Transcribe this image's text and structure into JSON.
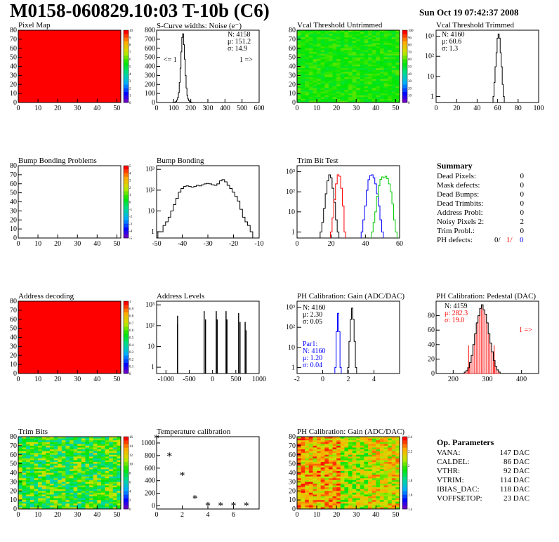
{
  "header": {
    "title": "M0158-060829.10:03 T-10b (C6)",
    "date": "Sun Oct 19 07:42:37 2008"
  },
  "colors": {
    "red": "#ff0000",
    "blue": "#0000ff",
    "green": "#00cc00",
    "black": "#000000"
  },
  "chart_data": [
    {
      "type": "heatmap",
      "title": "Pixel Map",
      "xlim": [
        0,
        52
      ],
      "ylim": [
        0,
        80
      ],
      "xticks": [
        "0",
        "10",
        "20",
        "30",
        "40",
        "50"
      ],
      "yticks": [
        "0",
        "10",
        "20",
        "30",
        "40",
        "50",
        "60",
        "70",
        "80"
      ],
      "zlim": [
        0,
        10
      ],
      "palette_ticks": [
        "0",
        "1",
        "2",
        "3",
        "4",
        "5",
        "6",
        "7",
        "8",
        "9",
        "10"
      ],
      "fill_color": "#ff0000"
    },
    {
      "type": "line",
      "title": "S-Curve widths: Noise (e⁻)",
      "xlim": [
        0,
        600
      ],
      "xticks": [
        "0",
        "100",
        "200",
        "300",
        "400",
        "500",
        "600"
      ],
      "ylim": [
        0,
        800
      ],
      "yticks": [
        "0",
        "100",
        "200",
        "300",
        "400",
        "500",
        "600",
        "700",
        "800"
      ],
      "stats": [
        "N: 4158",
        "μ: 151.2",
        "σ: 14.9"
      ],
      "annotations": [
        "<= 1",
        "1 =>"
      ],
      "x": [
        95,
        100,
        105,
        110,
        115,
        120,
        125,
        130,
        135,
        140,
        145,
        150,
        155,
        160,
        165,
        170,
        175,
        180,
        185,
        190,
        195,
        200,
        205,
        210
      ],
      "values": [
        1,
        2,
        3,
        6,
        12,
        28,
        55,
        110,
        220,
        380,
        560,
        720,
        760,
        640,
        480,
        300,
        160,
        80,
        40,
        20,
        10,
        5,
        2,
        1
      ]
    },
    {
      "type": "heatmap",
      "title": "Vcal Threshold Untrimmed",
      "xlim": [
        0,
        52
      ],
      "ylim": [
        0,
        80
      ],
      "xticks": [
        "0",
        "10",
        "20",
        "30",
        "40",
        "50"
      ],
      "yticks": [
        "0",
        "10",
        "20",
        "30",
        "40",
        "50",
        "60",
        "70",
        "80"
      ],
      "palette_ticks": [
        "0",
        "10",
        "20",
        "30",
        "40",
        "50",
        "60",
        "70",
        "80",
        "90",
        "100"
      ],
      "fill_color": "#39e639"
    },
    {
      "type": "line",
      "title": "Vcal Threshold Trimmed",
      "xlim": [
        0,
        100
      ],
      "xticks": [
        "0",
        "20",
        "40",
        "60",
        "80",
        "100"
      ],
      "yscale": "log",
      "ylim": [
        0.5,
        2000
      ],
      "yticks": [
        "1",
        "10",
        "10²",
        "10³"
      ],
      "stats": [
        "N: 4160",
        "μ: 60.6",
        "σ: 1.3"
      ],
      "x": [
        56,
        57,
        58,
        59,
        60,
        61,
        62,
        63,
        64,
        65,
        66
      ],
      "values": [
        1,
        5,
        30,
        150,
        800,
        1300,
        800,
        150,
        30,
        4,
        1
      ]
    },
    {
      "type": "heatmap",
      "title": "Bump Bonding Problems",
      "xlim": [
        0,
        52
      ],
      "ylim": [
        0,
        80
      ],
      "xticks": [
        "0",
        "10",
        "20",
        "30",
        "40",
        "50"
      ],
      "yticks": [
        "0",
        "10",
        "20",
        "30",
        "40",
        "50",
        "60",
        "70",
        "80"
      ],
      "palette_ticks": [
        "-5",
        "-4",
        "-3",
        "-2",
        "-1",
        "0",
        "1",
        "2",
        "3",
        "4",
        "5"
      ],
      "fill_color": "#ffffff"
    },
    {
      "type": "line",
      "title": "Bump Bonding",
      "xlim": [
        -50,
        -10
      ],
      "xticks": [
        "-50",
        "-40",
        "-30",
        "-20",
        "-10"
      ],
      "yscale": "log",
      "ylim": [
        0.5,
        1500
      ],
      "yticks": [
        "1",
        "10",
        "10²",
        "10³"
      ],
      "x": [
        -49,
        -48,
        -47,
        -46,
        -45,
        -44,
        -43,
        -42,
        -41,
        -40,
        -39,
        -38,
        -37,
        -36,
        -35,
        -34,
        -33,
        -32,
        -31,
        -30,
        -29,
        -28,
        -27,
        -26,
        -25,
        -24,
        -23,
        -22,
        -21,
        -20,
        -19,
        -18,
        -17,
        -16,
        -15,
        -14,
        -13
      ],
      "values": [
        1,
        1,
        2,
        3,
        5,
        10,
        20,
        40,
        80,
        120,
        150,
        160,
        150,
        140,
        150,
        170,
        160,
        180,
        200,
        210,
        200,
        180,
        170,
        200,
        280,
        320,
        250,
        170,
        120,
        80,
        50,
        30,
        12,
        5,
        3,
        2,
        1
      ]
    },
    {
      "type": "line",
      "title": "Trim Bit Test",
      "xlim": [
        0,
        60
      ],
      "xticks": [
        "0",
        "20",
        "40",
        "60"
      ],
      "yscale": "log",
      "ylim": [
        0.5,
        2000
      ],
      "yticks": [
        "1",
        "10",
        "10²",
        "10³"
      ],
      "series": [
        {
          "color": "black",
          "x": [
            14,
            15,
            16,
            17,
            18,
            19,
            20,
            21,
            22,
            23,
            24
          ],
          "values": [
            1,
            3,
            15,
            80,
            350,
            700,
            500,
            150,
            30,
            4,
            1
          ]
        },
        {
          "color": "red",
          "x": [
            20,
            21,
            22,
            23,
            24,
            25,
            26,
            27,
            28
          ],
          "values": [
            1,
            5,
            40,
            250,
            700,
            600,
            150,
            20,
            1
          ]
        },
        {
          "color": "blue",
          "x": [
            38,
            39,
            40,
            41,
            42,
            43,
            44,
            45,
            46,
            47,
            48,
            49,
            50
          ],
          "values": [
            1,
            4,
            20,
            120,
            400,
            650,
            700,
            500,
            250,
            80,
            20,
            4,
            1
          ]
        },
        {
          "color": "green",
          "x": [
            44,
            45,
            46,
            47,
            48,
            49,
            50,
            51,
            52,
            53,
            54,
            55,
            56,
            57,
            58
          ],
          "values": [
            1,
            3,
            10,
            60,
            200,
            420,
            550,
            500,
            600,
            450,
            250,
            100,
            25,
            4,
            1
          ]
        }
      ]
    },
    {
      "type": "table",
      "title": "Summary",
      "rows": [
        {
          "label": "Dead Pixels:",
          "value": "0"
        },
        {
          "label": "Mask defects:",
          "value": "0"
        },
        {
          "label": "Dead Bumps:",
          "value": "0"
        },
        {
          "label": "Dead Trimbits:",
          "value": "0"
        },
        {
          "label": "Address Probl:",
          "value": "0"
        },
        {
          "label": "Noisy Pixels 2:",
          "value": "2"
        },
        {
          "label": "Trim Probl.:",
          "value": "0"
        }
      ],
      "ph_defects": {
        "label": "PH defects:",
        "v1": "0/",
        "v2": "1/",
        "v3": "0"
      }
    },
    {
      "type": "heatmap",
      "title": "Address decoding",
      "xlim": [
        0,
        52
      ],
      "ylim": [
        0,
        80
      ],
      "xticks": [
        "0",
        "10",
        "20",
        "30",
        "40",
        "50"
      ],
      "yticks": [
        "0",
        "10",
        "20",
        "30",
        "40",
        "50",
        "60",
        "70",
        "80"
      ],
      "palette_ticks": [
        "0",
        "0.1",
        "0.2",
        "0.3",
        "0.4",
        "0.5",
        "0.6",
        "0.7",
        "0.8",
        "0.9",
        "1"
      ],
      "fill_color": "#ff0000"
    },
    {
      "type": "bar",
      "title": "Address Levels",
      "xlim": [
        -1200,
        1000
      ],
      "xticks": [
        "-1000",
        "-500",
        "0",
        "500",
        "1000"
      ],
      "yscale": "log",
      "ylim": [
        0.5,
        1500
      ],
      "yticks": [
        "1",
        "10",
        "10²",
        "10³"
      ],
      "x": [
        -750,
        -750,
        -180,
        -150,
        80,
        100,
        290,
        310,
        560,
        590,
        700,
        720
      ],
      "values": [
        300,
        120,
        500,
        200,
        500,
        200,
        500,
        200,
        400,
        150,
        150,
        60
      ]
    },
    {
      "type": "line",
      "title": "PH Calibration: Gain (ADC/DAC)",
      "xlim": [
        -2,
        6
      ],
      "xticks": [
        "-2",
        "0",
        "2",
        "4"
      ],
      "yscale": "log",
      "ylim": [
        0.5,
        2000
      ],
      "yticks": [
        "1",
        "10",
        "10²",
        "10³"
      ],
      "stats": [
        "N: 4160",
        "μ: 2.30",
        "σ: 0.05"
      ],
      "stats2": [
        "Par1:",
        "N: 4160",
        "μ: 1.20",
        "σ: 0.04"
      ],
      "series": [
        {
          "color": "black",
          "x": [
            2.0,
            2.1,
            2.2,
            2.3,
            2.4,
            2.5,
            2.6
          ],
          "values": [
            1,
            20,
            250,
            900,
            250,
            20,
            1
          ]
        },
        {
          "color": "blue",
          "x": [
            1.0,
            1.1,
            1.2,
            1.3,
            1.4
          ],
          "values": [
            1,
            60,
            500,
            60,
            1
          ]
        }
      ]
    },
    {
      "type": "line",
      "title": "PH Calibration: Pedestal (DAC)",
      "xlim": [
        150,
        450
      ],
      "xticks": [
        "200",
        "300",
        "400"
      ],
      "ylim": [
        0,
        100
      ],
      "yticks": [
        "0",
        "20",
        "40",
        "60",
        "80"
      ],
      "stats": [
        "N: 4159",
        "μ: 282.3",
        "σ: 19.0"
      ],
      "annotation": "1 =>",
      "x": [
        235,
        240,
        245,
        250,
        255,
        260,
        265,
        270,
        275,
        280,
        285,
        290,
        295,
        300,
        305,
        310,
        315,
        320,
        325,
        330,
        335
      ],
      "values": [
        2,
        4,
        8,
        15,
        25,
        40,
        55,
        70,
        80,
        90,
        95,
        88,
        82,
        70,
        55,
        42,
        30,
        18,
        10,
        5,
        2
      ]
    },
    {
      "type": "heatmap",
      "title": "Trim Bits",
      "xlim": [
        0,
        52
      ],
      "ylim": [
        0,
        80
      ],
      "xticks": [
        "0",
        "10",
        "20",
        "30",
        "40",
        "50"
      ],
      "yticks": [
        "0",
        "10",
        "20",
        "30",
        "40",
        "50",
        "60",
        "70",
        "80"
      ],
      "palette_ticks": [
        "0",
        "2",
        "4",
        "6",
        "8",
        "10",
        "12",
        "14",
        "16"
      ]
    },
    {
      "type": "scatter",
      "title": "Temperature calibration",
      "xlim": [
        0,
        8
      ],
      "xticks": [
        "0",
        "2",
        "4",
        "6"
      ],
      "ylim": [
        -50,
        1100
      ],
      "yticks": [
        "0",
        "200",
        "400",
        "600",
        "800",
        "1000"
      ],
      "x": [
        0,
        1,
        2,
        3,
        4,
        5,
        6,
        7
      ],
      "values": [
        1070,
        790,
        480,
        110,
        0,
        0,
        0,
        0
      ]
    },
    {
      "type": "heatmap",
      "title": "PH Calibration: Gain (ADC/DAC)",
      "xlim": [
        0,
        52
      ],
      "ylim": [
        0,
        80
      ],
      "xticks": [
        "0",
        "10",
        "20",
        "30",
        "40",
        "50"
      ],
      "yticks": [
        "0",
        "10",
        "20",
        "30",
        "40",
        "50",
        "60",
        "70",
        "80"
      ],
      "palette_ticks": [
        "1.4",
        "1.6",
        "1.8",
        "2",
        "2.2",
        "2.4"
      ]
    },
    {
      "type": "table",
      "title": "Op. Parameters",
      "rows": [
        {
          "label": "VANA:",
          "value": "147 DAC"
        },
        {
          "label": "CALDEL:",
          "value": "86 DAC"
        },
        {
          "label": "VTHR:",
          "value": "92 DAC"
        },
        {
          "label": "VTRIM:",
          "value": "114 DAC"
        },
        {
          "label": "IBIAS_DAC:",
          "value": "118 DAC"
        },
        {
          "label": "VOFFSETOP:",
          "value": "23 DAC"
        }
      ]
    }
  ]
}
